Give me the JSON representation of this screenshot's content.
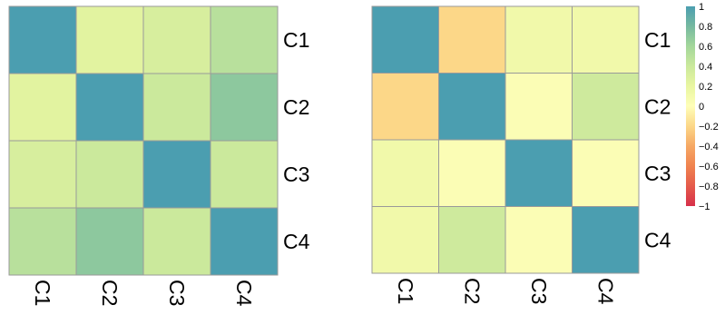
{
  "colors": {
    "cell_border": "#9a9a9a",
    "scale": [
      {
        "v": -1.0,
        "c": "#d7304a"
      },
      {
        "v": -0.8,
        "c": "#e55b4b"
      },
      {
        "v": -0.6,
        "c": "#f0834f"
      },
      {
        "v": -0.4,
        "c": "#f6a864"
      },
      {
        "v": -0.2,
        "c": "#fcd788"
      },
      {
        "v": 0.0,
        "c": "#fefeb8"
      },
      {
        "v": 0.2,
        "c": "#e9f6a1"
      },
      {
        "v": 0.4,
        "c": "#cbe99c"
      },
      {
        "v": 0.6,
        "c": "#a4d79b"
      },
      {
        "v": 0.8,
        "c": "#76b9a0"
      },
      {
        "v": 1.0,
        "c": "#4b9eb0"
      }
    ]
  },
  "chart_data": [
    {
      "type": "heatmap",
      "rows": [
        "C1",
        "C2",
        "C3",
        "C4"
      ],
      "columns": [
        "C1",
        "C2",
        "C3",
        "C4"
      ],
      "values": [
        [
          1.0,
          0.25,
          0.32,
          0.5
        ],
        [
          0.25,
          1.0,
          0.4,
          0.7
        ],
        [
          0.32,
          0.4,
          1.0,
          0.4
        ],
        [
          0.5,
          0.7,
          0.4,
          1.0
        ]
      ]
    },
    {
      "type": "heatmap",
      "rows": [
        "C1",
        "C2",
        "C3",
        "C4"
      ],
      "columns": [
        "C1",
        "C2",
        "C3",
        "C4"
      ],
      "values": [
        [
          1.0,
          -0.2,
          0.12,
          0.12
        ],
        [
          -0.2,
          1.0,
          0.03,
          0.38
        ],
        [
          0.12,
          0.03,
          1.0,
          0.03
        ],
        [
          0.12,
          0.38,
          0.03,
          1.0
        ]
      ]
    }
  ],
  "legend": {
    "range": [
      -1,
      1
    ],
    "ticks": [
      "1",
      "0.8",
      "0.6",
      "0.4",
      "0.2",
      "0",
      "−0.2",
      "−0.4",
      "−0.6",
      "−0.8",
      "−1"
    ]
  }
}
